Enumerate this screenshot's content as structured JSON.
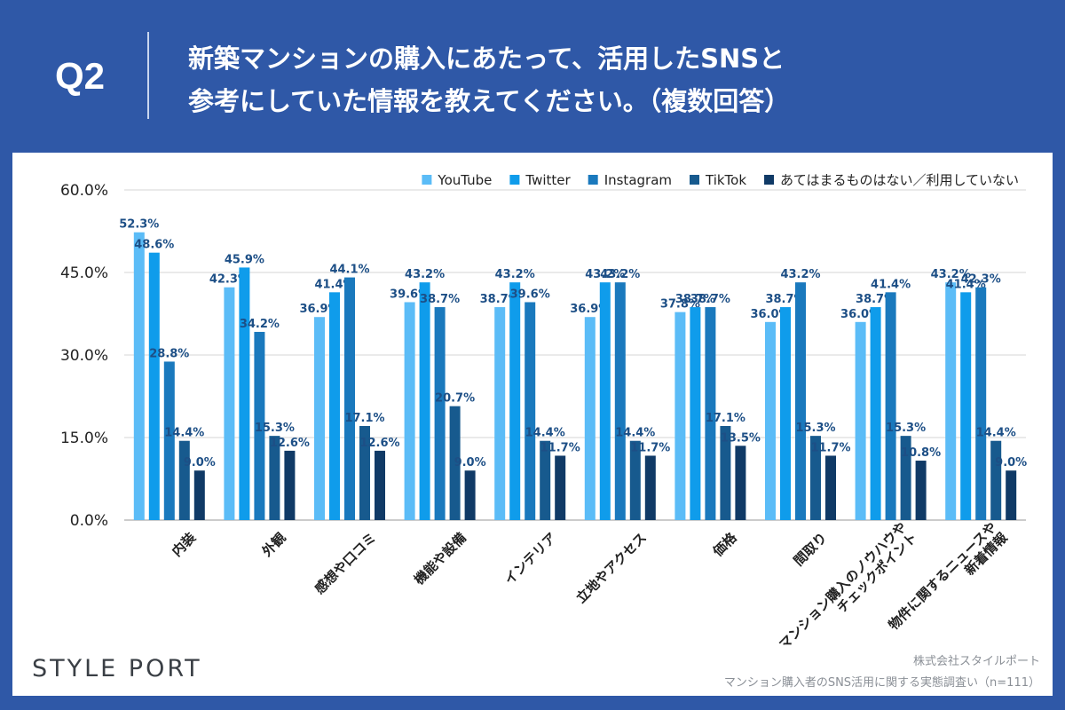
{
  "header": {
    "question_number": "Q2",
    "question_line1": "新築マンションの購入にあたって、活用したSNSと",
    "question_line2": "参考にしていた情報を教えてください。（複数回答）"
  },
  "footer": {
    "logo": "STYLE PORT",
    "company": "株式会社スタイルポート",
    "survey": "マンション購入者のSNS活用に関する実態調査い（n=111）"
  },
  "colors": {
    "background": "#2f58a7",
    "panel": "#ffffff"
  },
  "chart_data": {
    "type": "bar",
    "title": "",
    "xlabel": "",
    "ylabel": "",
    "ylim": [
      0,
      60
    ],
    "yticks": [
      0,
      15,
      30,
      45,
      60
    ],
    "ytick_labels": [
      "0.0%",
      "15.0%",
      "30.0%",
      "45.0%",
      "60.0%"
    ],
    "grid": true,
    "legend_position": "top-right",
    "categories": [
      "内装",
      "外観",
      "感想や口コミ",
      "機能や設備",
      "インテリア",
      "立地やアクセス",
      "価格",
      "間取り",
      "マンション購入のノウハウや\nチェックポイント",
      "物件に関するニュースや\n新着情報"
    ],
    "series": [
      {
        "name": "YouTube",
        "color": "#5bbcf7",
        "values": [
          52.3,
          42.3,
          36.9,
          39.6,
          38.7,
          36.9,
          37.8,
          36.0,
          36.0,
          43.2
        ],
        "labels": [
          "52.3%",
          "42.3%",
          "36.9%",
          "39.6%",
          "38.7%",
          "36.9%",
          "37.8%",
          "36.0%",
          "36.0%",
          "43.2%"
        ]
      },
      {
        "name": "Twitter",
        "color": "#0f9ceb",
        "values": [
          48.6,
          45.9,
          41.4,
          43.2,
          43.2,
          43.2,
          38.7,
          38.7,
          38.7,
          41.4
        ],
        "labels": [
          "48.6%",
          "45.9%",
          "41.4%",
          "43.2%",
          "43.2%",
          "43.2%",
          "38.7%",
          "38.7%",
          "38.7%",
          "41.4%"
        ]
      },
      {
        "name": "Instagram",
        "color": "#1a79bd",
        "values": [
          28.8,
          34.2,
          44.1,
          38.7,
          39.6,
          43.2,
          38.7,
          43.2,
          41.4,
          42.3
        ],
        "labels": [
          "28.8%",
          "34.2%",
          "44.1%",
          "38.7%",
          "39.6%",
          "43.2%",
          "38.7%",
          "43.2%",
          "41.4%",
          "42.3%"
        ]
      },
      {
        "name": "TikTok",
        "color": "#175a8e",
        "values": [
          14.4,
          15.3,
          17.1,
          20.7,
          14.4,
          14.4,
          17.1,
          15.3,
          15.3,
          14.4
        ],
        "labels": [
          "14.4%",
          "15.3%",
          "17.1%",
          "20.7%",
          "14.4%",
          "14.4%",
          "17.1%",
          "15.3%",
          "15.3%",
          "14.4%"
        ]
      },
      {
        "name": "あてはまるものはない／利用していない",
        "color": "#103a66",
        "values": [
          9.0,
          12.6,
          12.6,
          9.0,
          11.7,
          11.7,
          13.5,
          11.7,
          10.8,
          9.0
        ],
        "labels": [
          "9.0%",
          "12.6%",
          "12.6%",
          "9.0%",
          "11.7%",
          "11.7%",
          "13.5%",
          "11.7%",
          "10.8%",
          "9.0%"
        ]
      }
    ]
  }
}
